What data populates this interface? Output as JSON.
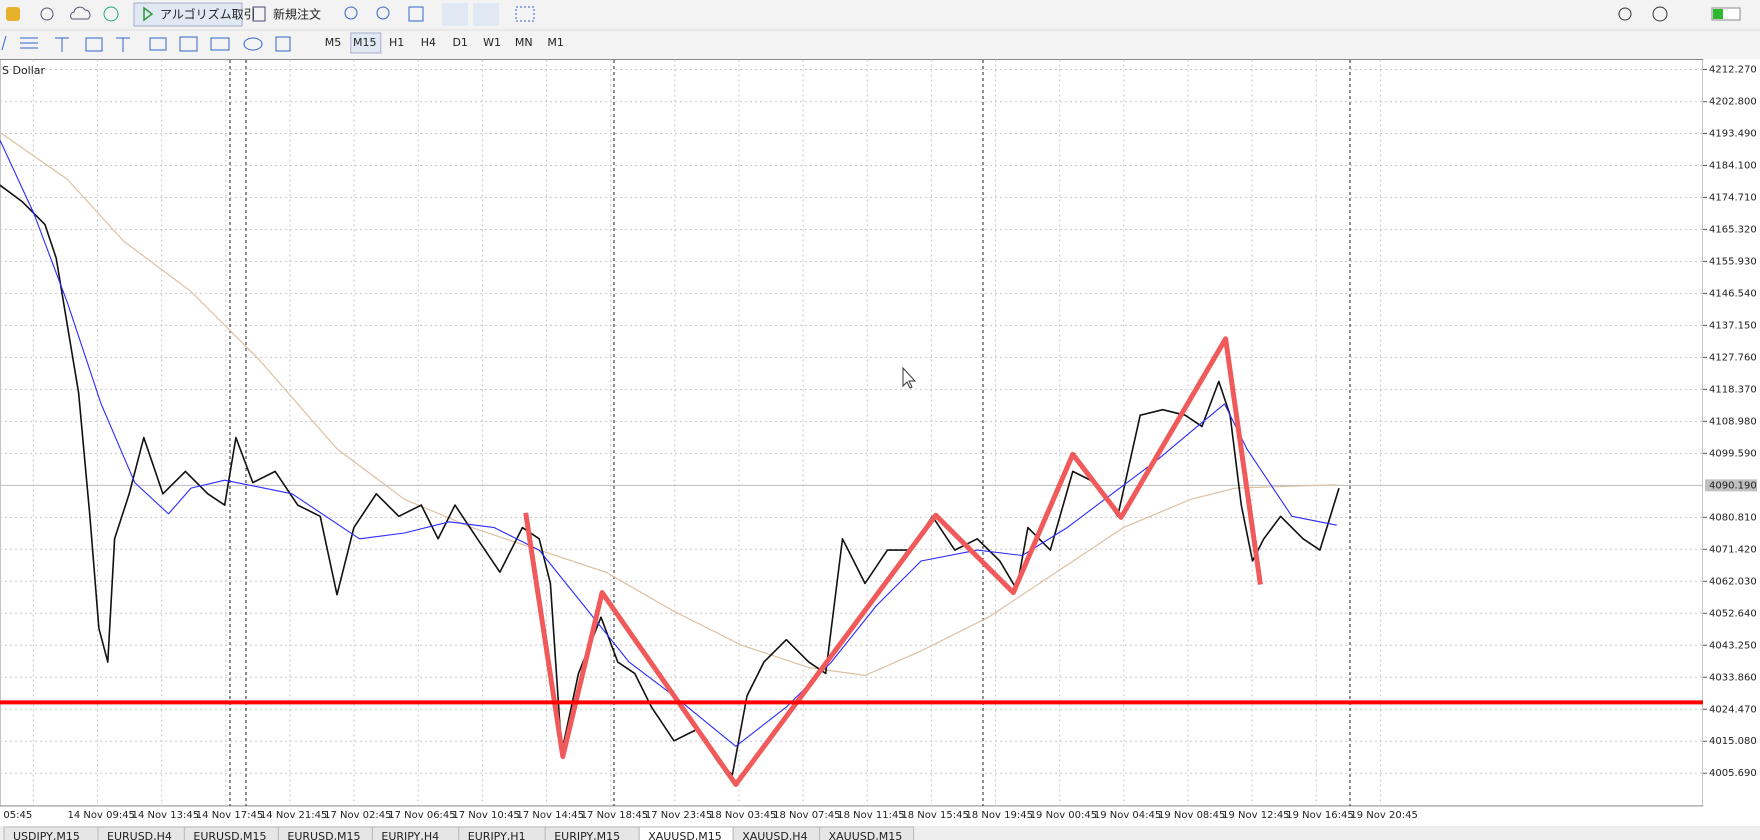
{
  "toolbar": {
    "algo_trading": "アルゴリズム取引",
    "new_order": "新規注文"
  },
  "timeframes": [
    "M5",
    "M15",
    "H1",
    "H4",
    "D1",
    "W1",
    "MN",
    "M1"
  ],
  "active_timeframe": 1,
  "chart_data": {
    "type": "line",
    "symbol_label": "S Dollar",
    "xlim": [
      0,
      379
    ],
    "ylim": [
      3996.1,
      4215.2
    ],
    "yticks": [
      {
        "value": 4212.27,
        "label": "4212.270"
      },
      {
        "value": 4202.8,
        "label": "4202.800"
      },
      {
        "value": 4193.49,
        "label": "4193.490"
      },
      {
        "value": 4184.1,
        "label": "4184.100"
      },
      {
        "value": 4174.71,
        "label": "4174.710"
      },
      {
        "value": 4165.32,
        "label": "4165.320"
      },
      {
        "value": 4155.93,
        "label": "4155.930"
      },
      {
        "value": 4146.54,
        "label": "4146.540"
      },
      {
        "value": 4137.15,
        "label": "4137.150"
      },
      {
        "value": 4127.76,
        "label": "4127.760"
      },
      {
        "value": 4118.37,
        "label": "4118.370"
      },
      {
        "value": 4108.98,
        "label": "4108.980"
      },
      {
        "value": 4099.59,
        "label": "4099.590"
      },
      {
        "value": 4080.81,
        "label": "4080.810"
      },
      {
        "value": 4071.42,
        "label": "4071.420"
      },
      {
        "value": 4062.03,
        "label": "4062.030"
      },
      {
        "value": 4052.64,
        "label": "4052.640"
      },
      {
        "value": 4043.25,
        "label": "4043.250"
      },
      {
        "value": 4033.86,
        "label": "4033.860"
      },
      {
        "value": 4024.47,
        "label": "4024.470"
      },
      {
        "value": 4015.08,
        "label": "4015.080"
      },
      {
        "value": 4005.69,
        "label": "4005.690"
      }
    ],
    "last_price": {
      "value": 4090.19,
      "label": "4090.190"
    },
    "hlines": [
      {
        "value": 4026.5,
        "color": "#ff0000"
      }
    ],
    "grid": true,
    "categories": [
      "05:45",
      "14 Nov 09:45",
      "14 Nov 13:45",
      "14 Nov 17:45",
      "14 Nov 21:45",
      "17 Nov 02:45",
      "17 Nov 06:45",
      "17 Nov 10:45",
      "17 Nov 14:45",
      "17 Nov 18:45",
      "17 Nov 23:45",
      "18 Nov 03:45",
      "18 Nov 07:45",
      "18 Nov 11:45",
      "18 Nov 15:45",
      "18 Nov 19:45",
      "19 Nov 00:45",
      "19 Nov 04:45",
      "19 Nov 08:45",
      "19 Nov 12:45",
      "19 Nov 16:45",
      "19 Nov 20:45"
    ],
    "series": [
      {
        "color": "#ddc0a0",
        "width": 1.2,
        "x": [
          0,
          15,
          27.5,
          42.5,
          57.5,
          75,
          90,
          105,
          120,
          135,
          150,
          165,
          180,
          192.5,
          205,
          220,
          235,
          250,
          265,
          275,
          297.5
        ],
        "values": [
          4193.8,
          4180.0,
          4161.9,
          4147.1,
          4127.3,
          4100.9,
          4086.1,
          4077.8,
          4071.2,
          4064.6,
          4053.2,
          4043.3,
          4036.7,
          4034.4,
          4041.6,
          4051.5,
          4064.6,
          4077.8,
          4086.1,
          4089.4,
          4090.4
        ]
      },
      {
        "color": "#111111",
        "width": 1.6,
        "x": [
          0,
          5,
          10,
          12.5,
          15,
          17.5,
          20,
          22,
          24,
          25.5,
          28.75,
          32,
          36.25,
          41.25,
          46.25,
          50,
          52.5,
          56.25,
          61.25,
          66.25,
          71.25,
          75,
          78.75,
          83.75,
          88.75,
          93.75,
          97.5,
          101.25,
          106.25,
          111.25,
          116.25,
          120,
          122.5,
          125,
          128.75,
          133.75,
          137.5,
          141.25,
          145,
          150,
          155,
          160,
          163,
          166.25,
          170,
          175,
          180,
          183.75,
          187.5,
          192.5,
          197.5,
          202.5,
          207.5,
          212.5,
          217.5,
          222.5,
          226.25,
          228.75,
          233.75,
          238.75,
          243.75,
          248.75,
          253.75,
          258.75,
          263.75,
          267.5,
          271.25,
          273.75,
          276.25,
          278.75,
          281.25,
          285,
          290,
          293.75,
          298
        ],
        "values": [
          4178.3,
          4173.4,
          4166.8,
          4156.9,
          4137.1,
          4117.4,
          4081.1,
          4048.2,
          4038.3,
          4074.5,
          4087.7,
          4104.2,
          4087.7,
          4094.3,
          4087.7,
          4084.4,
          4104.2,
          4091.0,
          4094.3,
          4084.4,
          4081.1,
          4058.1,
          4077.8,
          4087.7,
          4081.1,
          4084.4,
          4074.5,
          4084.4,
          4074.5,
          4064.7,
          4077.8,
          4074.5,
          4061.4,
          4011.9,
          4035.0,
          4051.5,
          4038.3,
          4035.0,
          4025.1,
          4015.2,
          4018.5,
          4008.6,
          4005.3,
          4028.4,
          4038.3,
          4044.9,
          4038.3,
          4035.0,
          4074.5,
          4061.4,
          4071.2,
          4071.2,
          4081.1,
          4071.2,
          4074.5,
          4068.0,
          4059.7,
          4077.8,
          4071.2,
          4094.3,
          4091.0,
          4081.1,
          4110.8,
          4112.4,
          4110.8,
          4107.5,
          4120.7,
          4110.8,
          4084.4,
          4068.0,
          4074.5,
          4081.1,
          4074.5,
          4071.2,
          4089.4
        ]
      },
      {
        "color": "#2b2bff",
        "width": 1.1,
        "x": [
          0,
          7.5,
          15,
          22.5,
          30,
          37.5,
          42.5,
          50,
          65,
          80,
          90,
          100,
          110,
          120,
          130,
          140,
          150,
          163.75,
          175,
          185,
          195,
          205,
          217.5,
          227.5,
          237.5,
          247.5,
          257.5,
          265,
          272.5,
          277.5,
          287.5,
          297.5
        ],
        "values": [
          4191.5,
          4170.1,
          4143.8,
          4114.1,
          4091.0,
          4081.8,
          4089.4,
          4091.7,
          4087.7,
          4074.5,
          4076.2,
          4079.5,
          4077.8,
          4071.2,
          4054.8,
          4038.3,
          4028.4,
          4013.6,
          4025.1,
          4038.3,
          4054.8,
          4068.0,
          4071.2,
          4069.6,
          4077.8,
          4087.7,
          4097.6,
          4105.9,
          4114.1,
          4100.9,
          4081.1,
          4078.5
        ]
      },
      {
        "color": "#f05a5a",
        "width": 5,
        "x": [
          117,
          125.25,
          134,
          163.75,
          208.25,
          225.5,
          238.75,
          249.5,
          272.75,
          280.5
        ],
        "values": [
          4082.1,
          4010.6,
          4058.7,
          4002.4,
          4081.4,
          4058.7,
          4099.3,
          4080.8,
          4133.2,
          4061.1
        ]
      }
    ]
  },
  "tabs": [
    "USDJPY,M15",
    "EURUSD,H4",
    "EURUSD,M15",
    "EURUSD,M15",
    "EURJPY,H4",
    "EURJPY,H1",
    "EURJPY,M15",
    "XAUUSD,M15",
    "XAUUSD,H4",
    "XAUUSD,M15"
  ],
  "active_tab": 7
}
